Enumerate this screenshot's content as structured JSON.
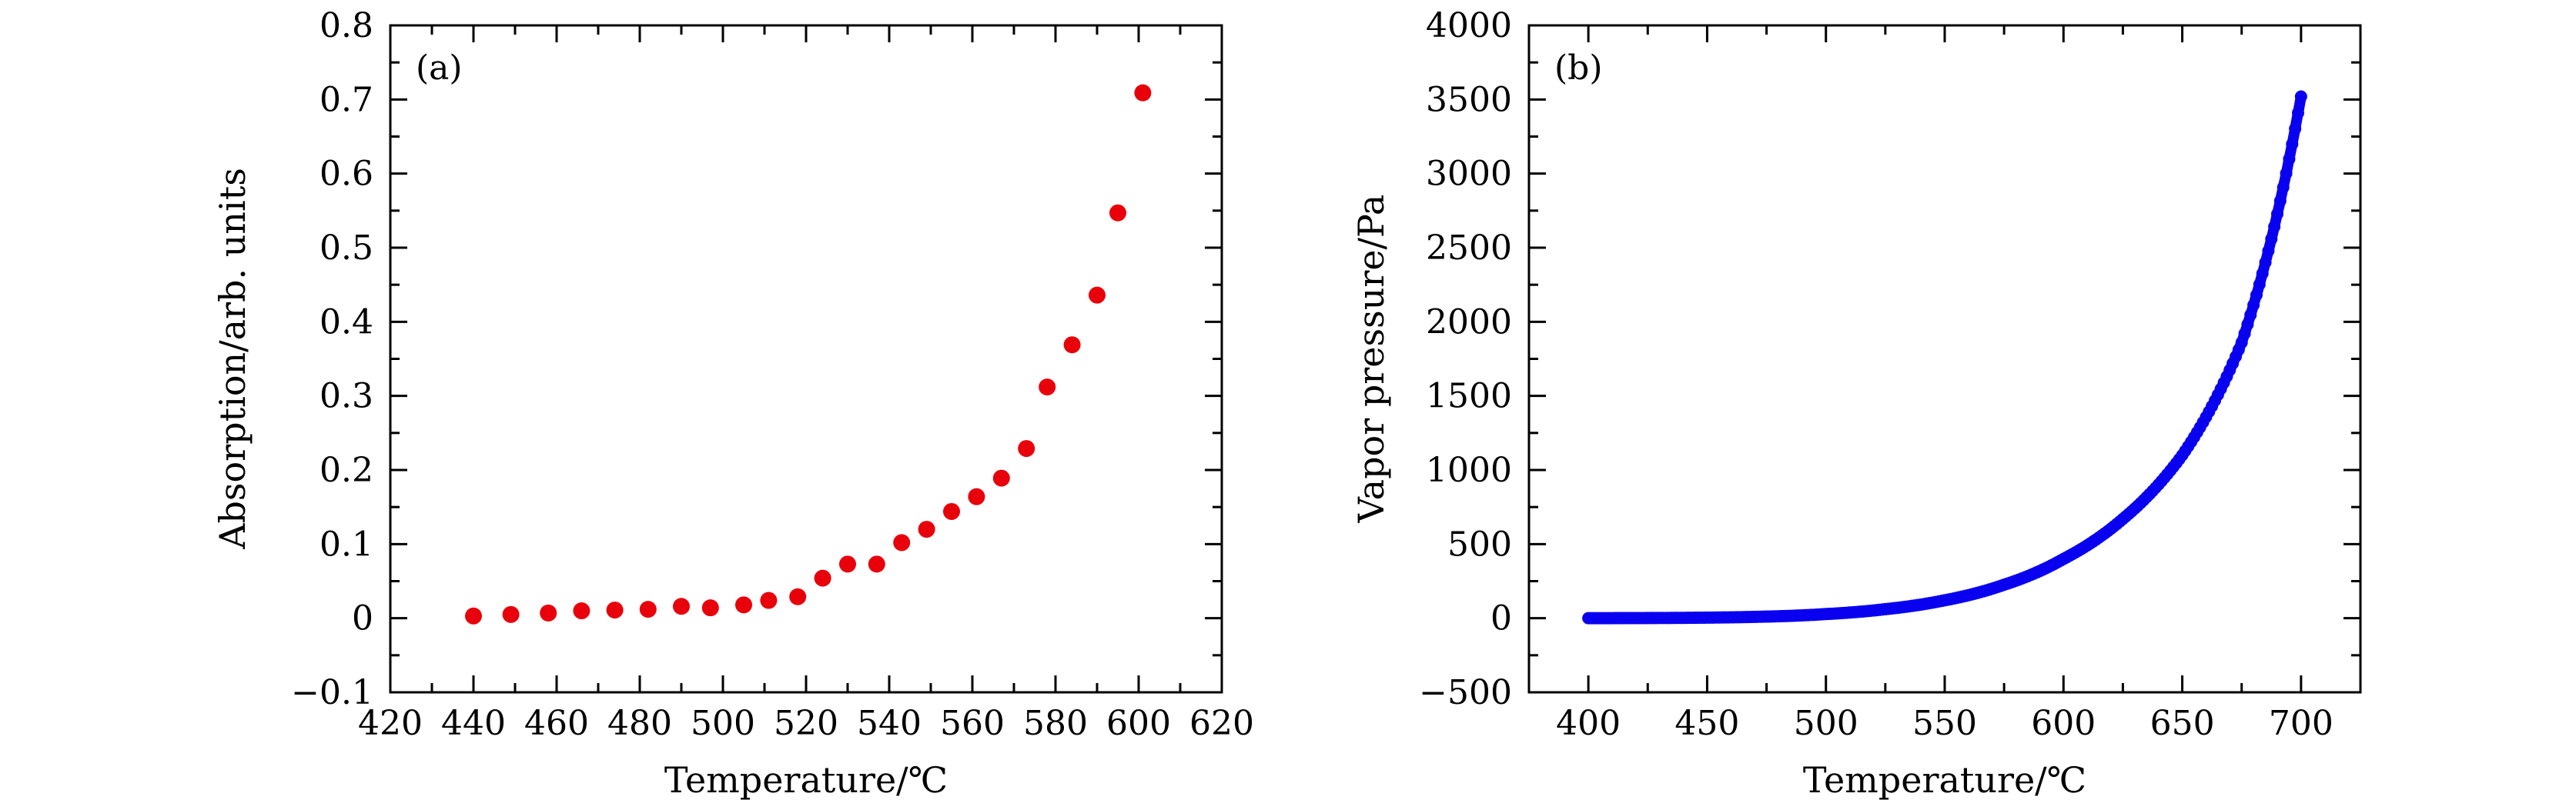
{
  "colors": {
    "panel_a_points": "#e8000b",
    "panel_b_curve": "#0a00f0",
    "axes": "#000000"
  },
  "chart_data": [
    {
      "type": "scatter",
      "panel_label": "(a)",
      "xlabel": "Temperature/℃",
      "ylabel": "Absorption/arb. units",
      "xlim": [
        420,
        620
      ],
      "ylim": [
        -0.1,
        0.8
      ],
      "x_ticks": [
        420,
        440,
        460,
        480,
        500,
        520,
        540,
        560,
        580,
        600,
        620
      ],
      "x_tick_labels": [
        "420",
        "440",
        "460",
        "480",
        "500",
        "520",
        "540",
        "560",
        "580",
        "600",
        "620"
      ],
      "y_ticks": [
        -0.1,
        0,
        0.1,
        0.2,
        0.3,
        0.4,
        0.5,
        0.6,
        0.7,
        0.8
      ],
      "y_tick_labels": [
        "−0.1",
        "0",
        "0.1",
        "0.2",
        "0.3",
        "0.4",
        "0.5",
        "0.6",
        "0.7",
        "0.8"
      ],
      "grid": false,
      "legend": "none",
      "series": [
        {
          "color": "#e8000b",
          "marker": "circle",
          "x": [
            440,
            449,
            458,
            466,
            474,
            482,
            490,
            497,
            505,
            511,
            518,
            524,
            530,
            537,
            543,
            549,
            555,
            561,
            567,
            573,
            578,
            584,
            590,
            595,
            601
          ],
          "y": [
            0.003,
            0.005,
            0.007,
            0.01,
            0.011,
            0.012,
            0.016,
            0.014,
            0.018,
            0.024,
            0.029,
            0.054,
            0.073,
            0.073,
            0.102,
            0.12,
            0.144,
            0.164,
            0.189,
            0.229,
            0.312,
            0.369,
            0.436,
            0.547,
            0.709
          ]
        }
      ]
    },
    {
      "type": "line",
      "panel_label": "(b)",
      "xlabel": "Temperature/℃",
      "ylabel": "Vapor pressure/Pa",
      "xlim": [
        375,
        725
      ],
      "ylim": [
        -500,
        4000
      ],
      "x_ticks": [
        400,
        450,
        500,
        550,
        600,
        650,
        700
      ],
      "x_tick_labels": [
        "400",
        "450",
        "500",
        "550",
        "600",
        "650",
        "700"
      ],
      "y_ticks": [
        -500,
        0,
        500,
        1000,
        1500,
        2000,
        2500,
        3000,
        3500,
        4000
      ],
      "y_tick_labels": [
        "−500",
        "0",
        "500",
        "1000",
        "1500",
        "2000",
        "2500",
        "3000",
        "3500",
        "4000"
      ],
      "grid": false,
      "legend": "none",
      "series": [
        {
          "color": "#0a00f0",
          "marker": "circle",
          "x": [
            400,
            425,
            450,
            475,
            500,
            525,
            550,
            575,
            600,
            625,
            650,
            675,
            700
          ],
          "y": [
            0.3,
            1.2,
            4,
            11,
            28,
            61,
            121,
            226,
            400,
            670,
            1100,
            1860,
            3520
          ]
        }
      ]
    }
  ]
}
